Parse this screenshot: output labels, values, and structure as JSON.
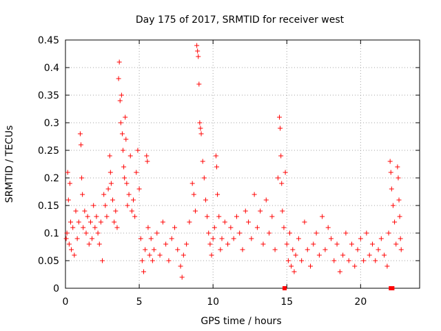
{
  "chart_data": {
    "type": "scatter",
    "title": "Day 175 of 2017, SRMTID for receiver west",
    "xlabel": "GPS time / hours",
    "ylabel": "SRMTID / TECUs",
    "xlim": [
      0,
      24
    ],
    "ylim": [
      0,
      0.45
    ],
    "xticks": [
      0,
      5,
      10,
      15,
      20
    ],
    "yticks": [
      0,
      0.05,
      0.1,
      0.15,
      0.2,
      0.25,
      0.3,
      0.35,
      0.4,
      0.45
    ],
    "grid": true,
    "marker": "+",
    "color": "#ff0000",
    "series": [
      {
        "name": "SRMTID west",
        "points": [
          [
            0.05,
            0.09
          ],
          [
            0.1,
            0.1
          ],
          [
            0.15,
            0.21
          ],
          [
            0.2,
            0.16
          ],
          [
            0.25,
            0.08
          ],
          [
            0.3,
            0.19
          ],
          [
            0.35,
            0.12
          ],
          [
            0.4,
            0.07
          ],
          [
            0.5,
            0.11
          ],
          [
            0.6,
            0.06
          ],
          [
            0.7,
            0.14
          ],
          [
            0.8,
            0.09
          ],
          [
            0.9,
            0.12
          ],
          [
            1.0,
            0.28
          ],
          [
            1.05,
            0.26
          ],
          [
            1.1,
            0.2
          ],
          [
            1.15,
            0.17
          ],
          [
            1.2,
            0.11
          ],
          [
            1.3,
            0.14
          ],
          [
            1.4,
            0.1
          ],
          [
            1.5,
            0.13
          ],
          [
            1.6,
            0.08
          ],
          [
            1.7,
            0.12
          ],
          [
            1.8,
            0.09
          ],
          [
            1.9,
            0.15
          ],
          [
            2.0,
            0.11
          ],
          [
            2.1,
            0.13
          ],
          [
            2.2,
            0.1
          ],
          [
            2.3,
            0.08
          ],
          [
            2.4,
            0.12
          ],
          [
            2.5,
            0.05
          ],
          [
            2.6,
            0.17
          ],
          [
            2.7,
            0.15
          ],
          [
            2.8,
            0.13
          ],
          [
            2.9,
            0.18
          ],
          [
            3.0,
            0.24
          ],
          [
            3.05,
            0.21
          ],
          [
            3.1,
            0.19
          ],
          [
            3.2,
            0.16
          ],
          [
            3.3,
            0.12
          ],
          [
            3.4,
            0.14
          ],
          [
            3.5,
            0.11
          ],
          [
            3.6,
            0.38
          ],
          [
            3.65,
            0.41
          ],
          [
            3.7,
            0.34
          ],
          [
            3.75,
            0.3
          ],
          [
            3.8,
            0.35
          ],
          [
            3.85,
            0.28
          ],
          [
            3.9,
            0.25
          ],
          [
            3.95,
            0.22
          ],
          [
            4.0,
            0.2
          ],
          [
            4.05,
            0.31
          ],
          [
            4.1,
            0.27
          ],
          [
            4.15,
            0.19
          ],
          [
            4.2,
            0.15
          ],
          [
            4.3,
            0.17
          ],
          [
            4.4,
            0.24
          ],
          [
            4.5,
            0.14
          ],
          [
            4.6,
            0.16
          ],
          [
            4.7,
            0.13
          ],
          [
            4.8,
            0.21
          ],
          [
            4.9,
            0.25
          ],
          [
            5.0,
            0.18
          ],
          [
            5.1,
            0.09
          ],
          [
            5.2,
            0.05
          ],
          [
            5.3,
            0.03
          ],
          [
            5.4,
            0.07
          ],
          [
            5.5,
            0.24
          ],
          [
            5.55,
            0.23
          ],
          [
            5.6,
            0.11
          ],
          [
            5.7,
            0.06
          ],
          [
            5.8,
            0.09
          ],
          [
            5.9,
            0.05
          ],
          [
            6.0,
            0.07
          ],
          [
            6.2,
            0.1
          ],
          [
            6.4,
            0.06
          ],
          [
            6.6,
            0.12
          ],
          [
            6.8,
            0.08
          ],
          [
            7.0,
            0.05
          ],
          [
            7.2,
            0.09
          ],
          [
            7.4,
            0.11
          ],
          [
            7.6,
            0.07
          ],
          [
            7.8,
            0.04
          ],
          [
            7.9,
            0.02
          ],
          [
            8.0,
            0.06
          ],
          [
            8.2,
            0.08
          ],
          [
            8.4,
            0.12
          ],
          [
            8.6,
            0.19
          ],
          [
            8.7,
            0.17
          ],
          [
            8.8,
            0.14
          ],
          [
            8.9,
            0.44
          ],
          [
            8.95,
            0.43
          ],
          [
            9.0,
            0.42
          ],
          [
            9.05,
            0.37
          ],
          [
            9.1,
            0.3
          ],
          [
            9.15,
            0.29
          ],
          [
            9.2,
            0.28
          ],
          [
            9.3,
            0.23
          ],
          [
            9.4,
            0.2
          ],
          [
            9.5,
            0.16
          ],
          [
            9.6,
            0.13
          ],
          [
            9.7,
            0.1
          ],
          [
            9.8,
            0.08
          ],
          [
            9.9,
            0.06
          ],
          [
            10.0,
            0.09
          ],
          [
            10.1,
            0.11
          ],
          [
            10.2,
            0.24
          ],
          [
            10.25,
            0.22
          ],
          [
            10.3,
            0.17
          ],
          [
            10.4,
            0.13
          ],
          [
            10.5,
            0.07
          ],
          [
            10.6,
            0.09
          ],
          [
            10.8,
            0.12
          ],
          [
            11.0,
            0.08
          ],
          [
            11.2,
            0.11
          ],
          [
            11.4,
            0.09
          ],
          [
            11.6,
            0.13
          ],
          [
            11.8,
            0.1
          ],
          [
            12.0,
            0.07
          ],
          [
            12.2,
            0.14
          ],
          [
            12.4,
            0.12
          ],
          [
            12.6,
            0.09
          ],
          [
            12.8,
            0.17
          ],
          [
            13.0,
            0.11
          ],
          [
            13.2,
            0.14
          ],
          [
            13.4,
            0.08
          ],
          [
            13.6,
            0.16
          ],
          [
            13.8,
            0.1
          ],
          [
            14.0,
            0.13
          ],
          [
            14.2,
            0.07
          ],
          [
            14.4,
            0.2
          ],
          [
            14.5,
            0.31
          ],
          [
            14.55,
            0.29
          ],
          [
            14.6,
            0.24
          ],
          [
            14.65,
            0.19
          ],
          [
            14.7,
            0.14
          ],
          [
            14.8,
            0.11
          ],
          [
            14.9,
            0.21
          ],
          [
            15.0,
            0.08
          ],
          [
            15.1,
            0.05
          ],
          [
            15.2,
            0.1
          ],
          [
            15.3,
            0.04
          ],
          [
            15.4,
            0.07
          ],
          [
            15.5,
            0.03
          ],
          [
            15.6,
            0.06
          ],
          [
            15.8,
            0.09
          ],
          [
            16.0,
            0.05
          ],
          [
            16.2,
            0.12
          ],
          [
            16.4,
            0.07
          ],
          [
            16.6,
            0.04
          ],
          [
            16.8,
            0.08
          ],
          [
            17.0,
            0.1
          ],
          [
            17.2,
            0.06
          ],
          [
            17.4,
            0.13
          ],
          [
            17.6,
            0.07
          ],
          [
            17.8,
            0.11
          ],
          [
            18.0,
            0.09
          ],
          [
            18.2,
            0.05
          ],
          [
            18.4,
            0.08
          ],
          [
            18.6,
            0.03
          ],
          [
            18.8,
            0.06
          ],
          [
            19.0,
            0.1
          ],
          [
            19.2,
            0.05
          ],
          [
            19.4,
            0.08
          ],
          [
            19.6,
            0.04
          ],
          [
            19.8,
            0.07
          ],
          [
            20.0,
            0.09
          ],
          [
            20.2,
            0.05
          ],
          [
            20.4,
            0.1
          ],
          [
            20.6,
            0.06
          ],
          [
            20.8,
            0.08
          ],
          [
            21.0,
            0.05
          ],
          [
            21.2,
            0.07
          ],
          [
            21.4,
            0.09
          ],
          [
            21.6,
            0.06
          ],
          [
            21.8,
            0.04
          ],
          [
            21.9,
            0.1
          ],
          [
            22.0,
            0.23
          ],
          [
            22.05,
            0.21
          ],
          [
            22.1,
            0.18
          ],
          [
            22.2,
            0.15
          ],
          [
            22.3,
            0.12
          ],
          [
            22.4,
            0.08
          ],
          [
            22.5,
            0.22
          ],
          [
            22.55,
            0.2
          ],
          [
            22.6,
            0.16
          ],
          [
            22.65,
            0.13
          ],
          [
            22.7,
            0.09
          ],
          [
            22.75,
            0.07
          ]
        ]
      }
    ],
    "baseline_markers": [
      [
        14.85,
        0
      ],
      [
        22.05,
        0
      ],
      [
        22.15,
        0
      ]
    ]
  }
}
